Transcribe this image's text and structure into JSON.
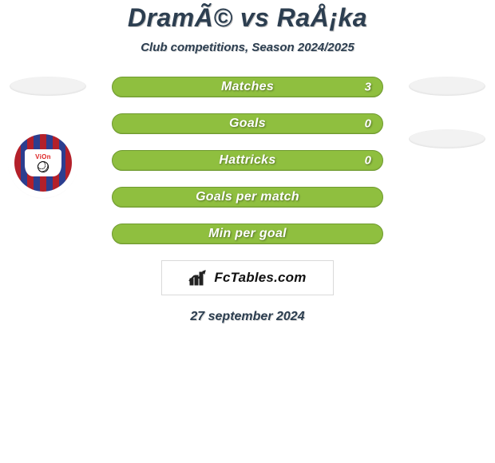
{
  "title": {
    "text": "DramÃ© vs RaÅ¡ka",
    "color": "#2c3e50",
    "fontsize": 32
  },
  "subtitle": {
    "text": "Club competitions, Season 2024/2025",
    "color": "#2c3e50",
    "fontsize": 15
  },
  "placeholder_color": "#f2f2f2",
  "left_badge": {
    "brand": "ViOn"
  },
  "stat_style": {
    "bar_color": "#8fbf3f",
    "border_color": "#6f9a2f",
    "label_fontsize": 16,
    "value_fontsize": 15
  },
  "stats": [
    {
      "label": "Matches",
      "value": "3"
    },
    {
      "label": "Goals",
      "value": "0"
    },
    {
      "label": "Hattricks",
      "value": "0"
    },
    {
      "label": "Goals per match",
      "value": ""
    },
    {
      "label": "Min per goal",
      "value": ""
    }
  ],
  "brand_box": {
    "text": "FcTables.com",
    "fontsize": 17,
    "icon_color": "#222222"
  },
  "date": {
    "text": "27 september 2024",
    "color": "#2c3e50",
    "fontsize": 16
  }
}
